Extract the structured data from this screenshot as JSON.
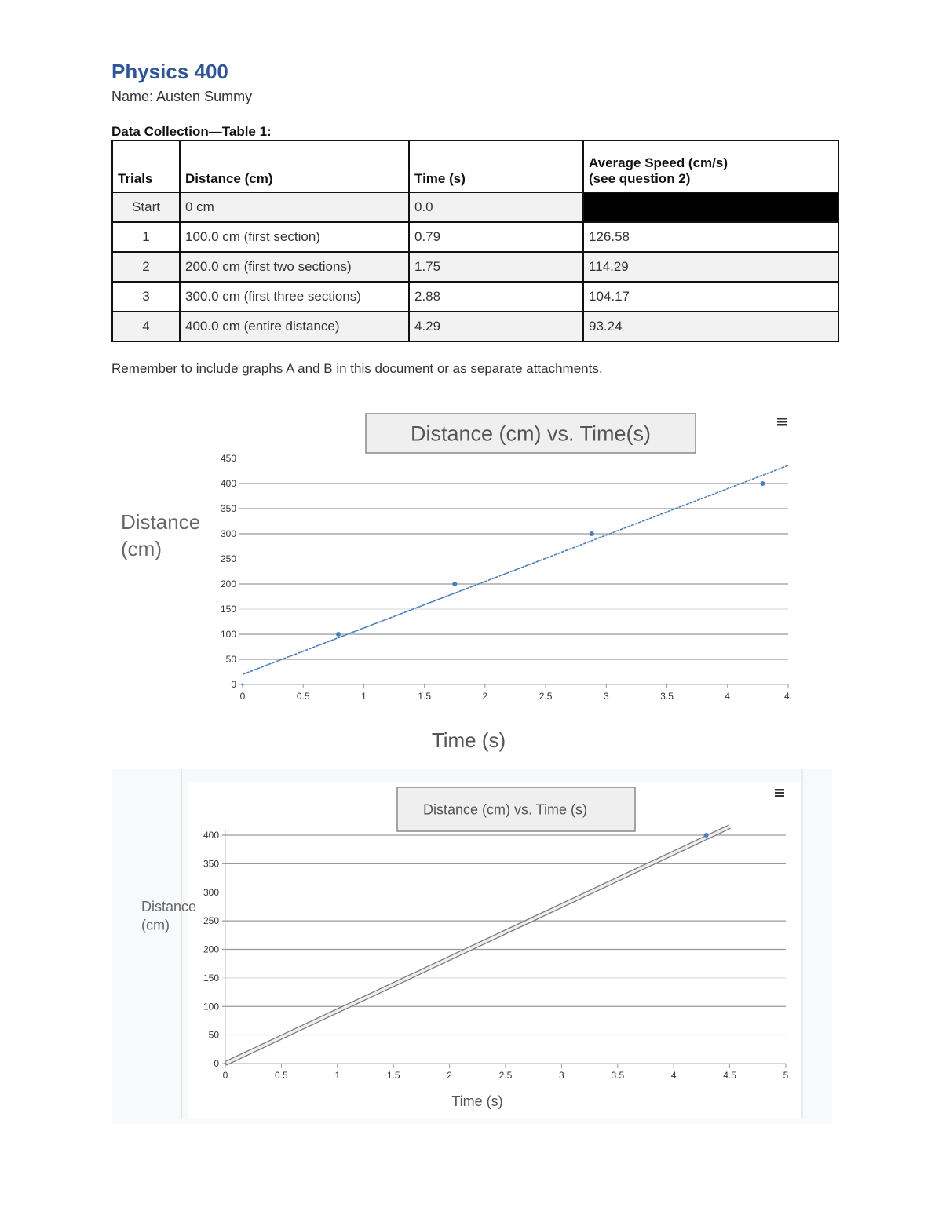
{
  "header": {
    "title": "Physics 400",
    "name": "Name: Austen Summy"
  },
  "table": {
    "caption": "Data Collection—Table 1:",
    "columns": [
      "Trials",
      "Distance (cm)",
      "Time (s)",
      "Average Speed (cm/s)",
      "(see question 2)"
    ],
    "rows": [
      {
        "trial": "Start",
        "distance": "0 cm",
        "time": " 0.0",
        "speed": ""
      },
      {
        "trial": "1",
        "distance": "100.0 cm (first section)",
        "time": "0.79",
        "speed": "126.58"
      },
      {
        "trial": "2",
        "distance": "200.0 cm (first two sections)",
        "time": "1.75",
        "speed": "114.29"
      },
      {
        "trial": "3",
        "distance": "300.0 cm (first three sections)",
        "time": "2.88",
        "speed": "104.17"
      },
      {
        "trial": "4",
        "distance": "400.0 cm (entire distance)",
        "time": "4.29",
        "speed": "93.24"
      }
    ]
  },
  "note": "Remember to include graphs A and B in this document or as separate attachments.",
  "chart_data": [
    {
      "type": "scatter",
      "title": "Distance (cm) vs. Time(s)",
      "xlabel": "Time (s)",
      "ylabel": "Distance (cm)",
      "xlim": [
        0,
        4.5
      ],
      "ylim": [
        0,
        450
      ],
      "xticks": [
        "0",
        "0.5",
        "1",
        "1.5",
        "2",
        "2.5",
        "3",
        "3.5",
        "4",
        "4."
      ],
      "yticks": [
        "0",
        "50",
        "100",
        "150",
        "200",
        "250",
        "300",
        "350",
        "400",
        "450"
      ],
      "grid": true,
      "points": [
        [
          0,
          0
        ],
        [
          0.79,
          100
        ],
        [
          1.75,
          200
        ],
        [
          2.88,
          300
        ],
        [
          4.29,
          400
        ]
      ],
      "trendline": {
        "style": "dashed",
        "start": [
          0,
          20
        ],
        "end": [
          4.5,
          436
        ]
      },
      "color": "#4a7ebb",
      "menu_icon": "hamburger-menu-icon"
    },
    {
      "type": "scatter",
      "title": "Distance (cm) vs. Time (s)",
      "xlabel": "Time (s)",
      "ylabel": "Distance (cm)",
      "xlim": [
        0,
        5
      ],
      "ylim": [
        0,
        400
      ],
      "xticks": [
        "0",
        "0.5",
        "1",
        "1.5",
        "2",
        "2.5",
        "3",
        "3.5",
        "4",
        "4.5",
        "5"
      ],
      "yticks": [
        "0",
        "50",
        "100",
        "150",
        "200",
        "250",
        "300",
        "350",
        "400"
      ],
      "grid": true,
      "points": [
        [
          0,
          0
        ],
        [
          4.29,
          400
        ]
      ],
      "trendline": {
        "style": "double",
        "start": [
          0,
          0
        ],
        "end": [
          4.5,
          415
        ]
      },
      "color": "#4a7ebb",
      "menu_icon": "hamburger-menu-icon"
    }
  ]
}
